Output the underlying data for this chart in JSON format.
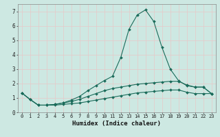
{
  "xlabel": "Humidex (Indice chaleur)",
  "background_color": "#cde8e2",
  "grid_color": "#e8c8c8",
  "line_color": "#1a6b5a",
  "xlim": [
    -0.5,
    23.5
  ],
  "ylim": [
    0,
    7.5
  ],
  "xticks": [
    0,
    1,
    2,
    3,
    4,
    5,
    6,
    7,
    8,
    9,
    10,
    11,
    12,
    13,
    14,
    15,
    16,
    17,
    18,
    19,
    20,
    21,
    22,
    23
  ],
  "yticks": [
    0,
    1,
    2,
    3,
    4,
    5,
    6,
    7
  ],
  "line1_x": [
    0,
    1,
    2,
    3,
    4,
    5,
    6,
    7,
    8,
    9,
    10,
    11,
    12,
    13,
    14,
    15,
    16,
    17,
    18,
    19,
    20,
    21,
    22,
    23
  ],
  "line1_y": [
    1.35,
    0.9,
    0.5,
    0.5,
    0.55,
    0.65,
    0.85,
    1.1,
    1.5,
    1.85,
    2.2,
    2.5,
    3.8,
    5.75,
    6.75,
    7.1,
    6.3,
    4.5,
    3.0,
    2.2,
    1.85,
    1.75,
    1.75,
    1.3
  ],
  "line2_x": [
    0,
    1,
    2,
    3,
    4,
    5,
    6,
    7,
    8,
    9,
    10,
    11,
    12,
    13,
    14,
    15,
    16,
    17,
    18,
    19,
    20,
    21,
    22,
    23
  ],
  "line2_y": [
    1.35,
    0.9,
    0.5,
    0.5,
    0.55,
    0.65,
    0.75,
    0.9,
    1.1,
    1.3,
    1.5,
    1.65,
    1.75,
    1.85,
    1.95,
    2.0,
    2.05,
    2.1,
    2.15,
    2.15,
    1.9,
    1.75,
    1.75,
    1.3
  ],
  "line3_x": [
    0,
    1,
    2,
    3,
    4,
    5,
    6,
    7,
    8,
    9,
    10,
    11,
    12,
    13,
    14,
    15,
    16,
    17,
    18,
    19,
    20,
    21,
    22,
    23
  ],
  "line3_y": [
    1.35,
    0.9,
    0.5,
    0.5,
    0.5,
    0.55,
    0.6,
    0.65,
    0.75,
    0.85,
    0.95,
    1.05,
    1.15,
    1.25,
    1.35,
    1.4,
    1.45,
    1.5,
    1.55,
    1.55,
    1.4,
    1.3,
    1.3,
    1.3
  ],
  "xlabel_fontsize": 6.5,
  "tick_fontsize": 5.0
}
